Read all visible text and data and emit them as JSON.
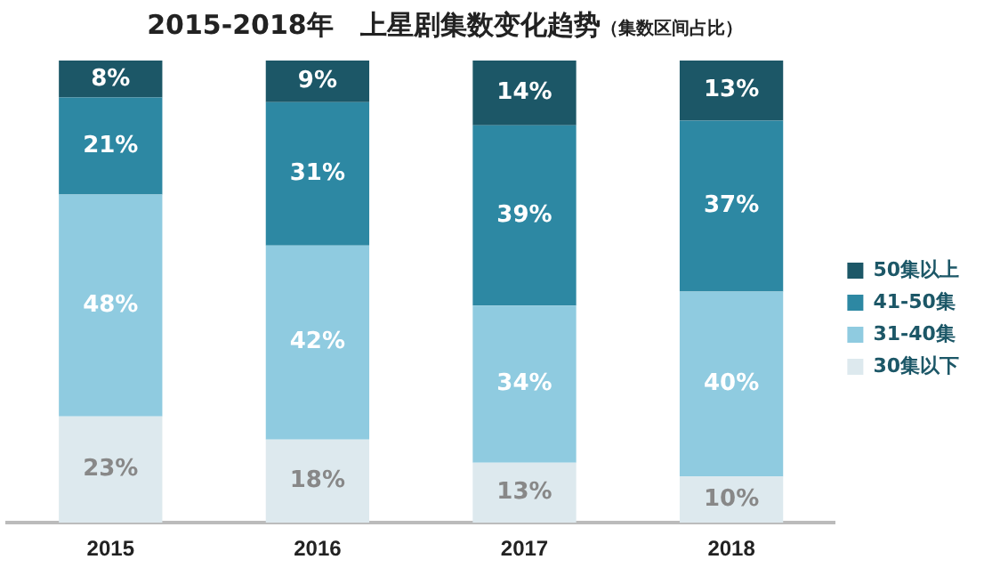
{
  "chart_data": {
    "type": "bar",
    "title": "2015-2018年　上星剧集数变化趋势",
    "subtitle": "（集数区间占比）",
    "categories": [
      "2015",
      "2016",
      "2017",
      "2018"
    ],
    "stacked": true,
    "ylim": [
      0,
      100
    ],
    "tick_labels": "x",
    "grid": false,
    "legend": "right",
    "series": [
      {
        "name": "30集以下",
        "color": "#dde9ee",
        "values": [
          23,
          18,
          13,
          10
        ],
        "value_labels": [
          "23%",
          "18%",
          "13%",
          "10%"
        ]
      },
      {
        "name": "31-40集",
        "color": "#8fcbe0",
        "values": [
          48,
          42,
          34,
          40
        ],
        "value_labels": [
          "48%",
          "42%",
          "34%",
          "40%"
        ]
      },
      {
        "name": "41-50集",
        "color": "#2d88a3",
        "values": [
          21,
          31,
          39,
          37
        ],
        "value_labels": [
          "21%",
          "31%",
          "39%",
          "37%"
        ]
      },
      {
        "name": "50集以上",
        "color": "#1c5767",
        "values": [
          8,
          9,
          14,
          13
        ],
        "value_labels": [
          "8%",
          "9%",
          "14%",
          "13%"
        ]
      }
    ]
  }
}
